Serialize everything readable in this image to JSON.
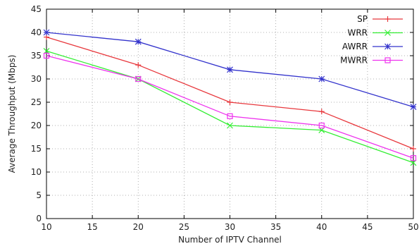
{
  "chart_data": {
    "type": "line",
    "xlabel": "Number of IPTV Channel",
    "ylabel": "Average Throughput (Mbps)",
    "xlim": [
      10,
      50
    ],
    "ylim": [
      0,
      45
    ],
    "x_ticks": [
      10,
      15,
      20,
      25,
      30,
      35,
      40,
      45,
      50
    ],
    "x_tick_labels": [
      "10",
      "15",
      "20",
      "25",
      "30",
      "35",
      "40",
      "45",
      "50"
    ],
    "y_ticks": [
      0,
      5,
      10,
      15,
      20,
      25,
      30,
      35,
      40,
      45
    ],
    "y_tick_labels": [
      "0",
      "5",
      "10",
      "15",
      "20",
      "25",
      "30",
      "35",
      "40",
      "45"
    ],
    "grid": true,
    "legend_position": "top-right",
    "x": [
      10,
      20,
      30,
      40,
      50
    ],
    "series": [
      {
        "name": "SP",
        "color": "#e8383d",
        "marker": "plus",
        "values": [
          39,
          33,
          25,
          23,
          15
        ]
      },
      {
        "name": "WRR",
        "color": "#33ee33",
        "marker": "cross",
        "values": [
          36,
          30,
          20,
          19,
          12
        ]
      },
      {
        "name": "AWRR",
        "color": "#3333cc",
        "marker": "star",
        "values": [
          40,
          38,
          32,
          30,
          24
        ]
      },
      {
        "name": "MWRR",
        "color": "#ee33ee",
        "marker": "open-square",
        "values": [
          35,
          30,
          22,
          20,
          13
        ]
      }
    ]
  }
}
